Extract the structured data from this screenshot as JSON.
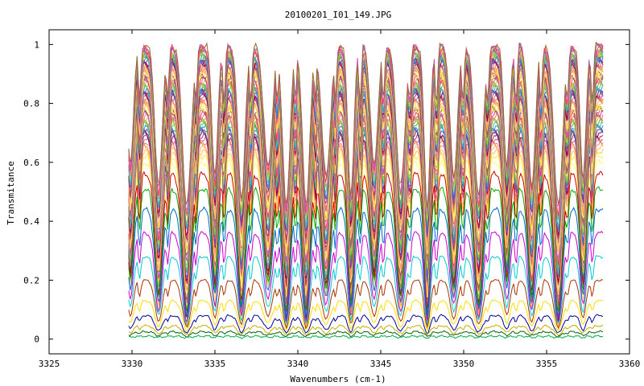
{
  "chart_data": {
    "type": "line",
    "title": "20100201_I01_149.JPG",
    "xlabel": "Wavenumbers (cm-1)",
    "ylabel": "Transmitance",
    "xlim": [
      3325,
      3360
    ],
    "ylim": [
      -0.05,
      1.05
    ],
    "x_ticks": [
      3325,
      3330,
      3335,
      3340,
      3345,
      3350,
      3355,
      3360
    ],
    "x_tick_labels": [
      "3325",
      "3330",
      "3335",
      "3340",
      "3345",
      "3350",
      "3355",
      "3360"
    ],
    "y_ticks": [
      0,
      0.2,
      0.4,
      0.6,
      0.8,
      1
    ],
    "y_tick_labels": [
      "0",
      "0.2",
      "0.4",
      "0.6",
      "0.8",
      "1"
    ],
    "grid": false,
    "legend": "none",
    "data_range_x": [
      3329.8,
      3358.4
    ],
    "absorption_line_centers": [
      3329.9,
      3331.6,
      3333.3,
      3335.0,
      3336.6,
      3338.2,
      3339.3,
      3340.5,
      3341.7,
      3343.2,
      3344.6,
      3346.2,
      3347.8,
      3349.4,
      3350.9,
      3352.6,
      3354.1,
      3355.7,
      3357.2
    ],
    "series_samples": [
      {
        "baseline": 0.56,
        "dip_depth": 0.46,
        "color": "#cc0000"
      },
      {
        "baseline": 0.51,
        "dip_depth": 0.42,
        "color": "#00aa00"
      },
      {
        "baseline": 0.44,
        "dip_depth": 0.36,
        "color": "#0066cc"
      },
      {
        "baseline": 0.36,
        "dip_depth": 0.3,
        "color": "#cc00cc"
      },
      {
        "baseline": 0.28,
        "dip_depth": 0.23,
        "color": "#00cccc"
      },
      {
        "baseline": 0.2,
        "dip_depth": 0.16,
        "color": "#aa3300"
      },
      {
        "baseline": 0.13,
        "dip_depth": 0.1,
        "color": "#ffdd00"
      },
      {
        "baseline": 0.08,
        "dip_depth": 0.06,
        "color": "#000099"
      },
      {
        "baseline": 0.045,
        "dip_depth": 0.03,
        "color": "#ccaa00"
      },
      {
        "baseline": 0.025,
        "dip_depth": 0.015,
        "color": "#006600"
      },
      {
        "baseline": 0.01,
        "dip_depth": 0.005,
        "color": "#00aa44"
      }
    ],
    "upper_family": {
      "count": 60,
      "baseline_range": [
        0.6,
        0.995
      ],
      "colors": [
        "#ffff66",
        "#ffee44",
        "#ffcc44",
        "#ffbb77",
        "#ff9966",
        "#ee8866",
        "#cc6699",
        "#aa3366",
        "#990033",
        "#7744aa",
        "#5566cc",
        "#3399cc",
        "#44bbaa",
        "#66aa44",
        "#99cc33",
        "#cccc33",
        "#ff66aa",
        "#ff3366",
        "#aa66cc",
        "#996633"
      ]
    }
  }
}
